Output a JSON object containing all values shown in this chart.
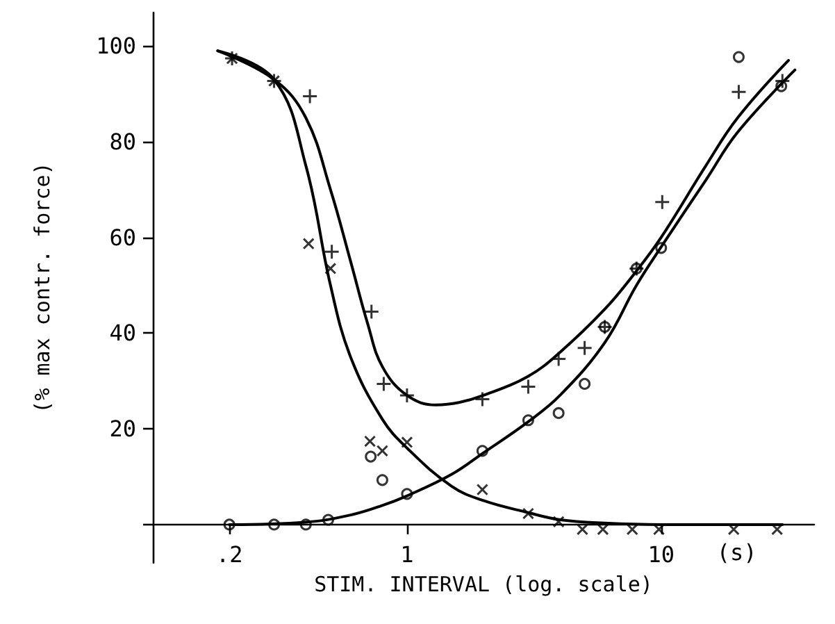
{
  "chart_data": {
    "type": "scatter",
    "xlabel": "STIM. INTERVAL (log. scale)",
    "ylabel": "(% max contr. force)",
    "annotations": [
      "(s)"
    ],
    "log": "x",
    "grid": false,
    "xlim": [
      0.1,
      40
    ],
    "xticks": [
      {
        "value": 0.2,
        "label": ".2"
      },
      1,
      10
    ],
    "ylim": [
      -8,
      107
    ],
    "yticks": [
      {
        "value": 0,
        "label": null
      },
      20,
      40,
      60,
      80,
      100
    ],
    "series": [
      {
        "marker": "plus",
        "color": "#000000",
        "x": [
          0.205,
          0.3,
          0.415,
          0.506,
          0.725,
          0.81,
          1.0,
          1.98,
          3.0,
          3.95,
          5.0,
          6.0,
          8.0,
          10.1,
          20.2,
          30
        ],
        "values": [
          97.4,
          92.7,
          89.5,
          57,
          44.5,
          29.4,
          27,
          26.2,
          28.8,
          34.6,
          36.9,
          41.3,
          53.5,
          67.4,
          90.4,
          92.7
        ]
      },
      {
        "marker": "cross",
        "color": "#000000",
        "x": [
          0.205,
          0.3,
          0.41,
          0.5,
          0.715,
          0.8,
          1.0,
          1.98,
          3.0,
          3.95,
          4.9,
          5.9,
          7.7,
          9.8,
          19.3,
          28.6
        ],
        "values": [
          97.4,
          92.7,
          58.7,
          53.5,
          17.4,
          15.4,
          17.2,
          7.3,
          2.3,
          0.6,
          -1,
          -1,
          -1,
          -1,
          -1,
          -1
        ]
      },
      {
        "marker": "circle",
        "color": "#000000",
        "x": [
          0.2,
          0.3,
          0.4,
          0.49,
          0.72,
          0.8,
          1.0,
          1.98,
          3.0,
          3.95,
          5.0,
          6.0,
          8.0,
          10,
          20.2,
          29.7
        ],
        "values": [
          0,
          0,
          0,
          1,
          14.2,
          9.3,
          6.4,
          15.4,
          21.8,
          23.3,
          29.4,
          41.3,
          53.5,
          57.8,
          97.7,
          91.6
        ]
      },
      {
        "type": "line",
        "marker": "none",
        "line_style": "solid",
        "color": "#000000",
        "x": [
          0.18,
          0.3,
          0.4,
          0.5,
          0.6,
          0.7,
          0.8,
          1.0,
          1.3,
          1.6,
          2,
          3,
          4,
          6,
          8,
          10,
          15,
          20,
          31.7
        ],
        "values": [
          99,
          93,
          85,
          70,
          55,
          42,
          33,
          27,
          25,
          25.5,
          27,
          31,
          36,
          45,
          53,
          60,
          75,
          85,
          97
        ]
      },
      {
        "type": "line",
        "marker": "none",
        "line_style": "solid",
        "color": "#000000",
        "x": [
          0.18,
          0.3,
          0.4,
          0.5,
          0.6,
          0.8,
          1,
          1.5,
          2,
          3,
          4,
          6,
          10,
          20,
          30
        ],
        "values": [
          99,
          93,
          75,
          50,
          35,
          22,
          16,
          8,
          5,
          2.5,
          1,
          0.3,
          0,
          0,
          0
        ]
      },
      {
        "type": "line",
        "marker": "none",
        "line_style": "solid",
        "color": "#000000",
        "x": [
          0.2,
          0.4,
          0.6,
          0.8,
          1,
          1.5,
          2,
          3,
          4,
          6,
          8,
          10,
          15,
          20,
          33.6
        ],
        "values": [
          0,
          0.5,
          2,
          4,
          6,
          10.5,
          15,
          21.5,
          27,
          38,
          50,
          58,
          72,
          82,
          95
        ]
      }
    ]
  }
}
